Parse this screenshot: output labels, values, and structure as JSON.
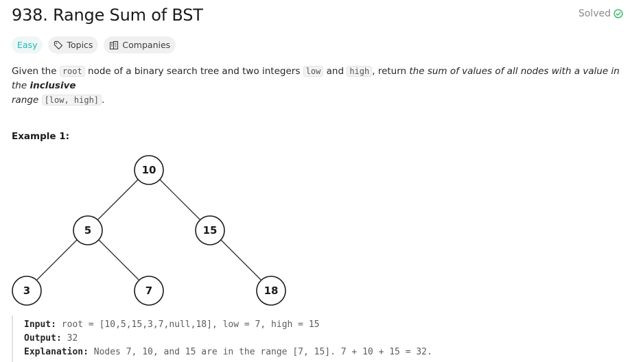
{
  "problem": {
    "title": "938. Range Sum of BST",
    "status": "Solved"
  },
  "tags": {
    "difficulty": "Easy",
    "topics": "Topics",
    "companies": "Companies"
  },
  "description": {
    "p1": "Given the ",
    "code_root": "root",
    "p2": " node of a binary search tree and two integers ",
    "code_low": "low",
    "p3": " and ",
    "code_high": "high",
    "p4": ", return ",
    "em1": "the sum of values of all nodes with a value in the ",
    "strong": "inclusive",
    "em2": "range",
    "p5": " ",
    "code_range": "[low, high]",
    "p6": "."
  },
  "example": {
    "title": "Example 1:",
    "tree_nodes": [
      "10",
      "5",
      "15",
      "3",
      "7",
      "18"
    ],
    "input_label": "Input:",
    "input_value": "root = [10,5,15,3,7,null,18], low = 7, high = 15",
    "output_label": "Output:",
    "output_value": "32",
    "explanation_label": "Explanation:",
    "explanation_value": "Nodes 7, 10, and 15 are in the range [7, 15]. 7 + 10 + 15 = 32."
  },
  "colors": {
    "easy": "#1cb8b8",
    "solved_check": "#2cbb5d"
  }
}
